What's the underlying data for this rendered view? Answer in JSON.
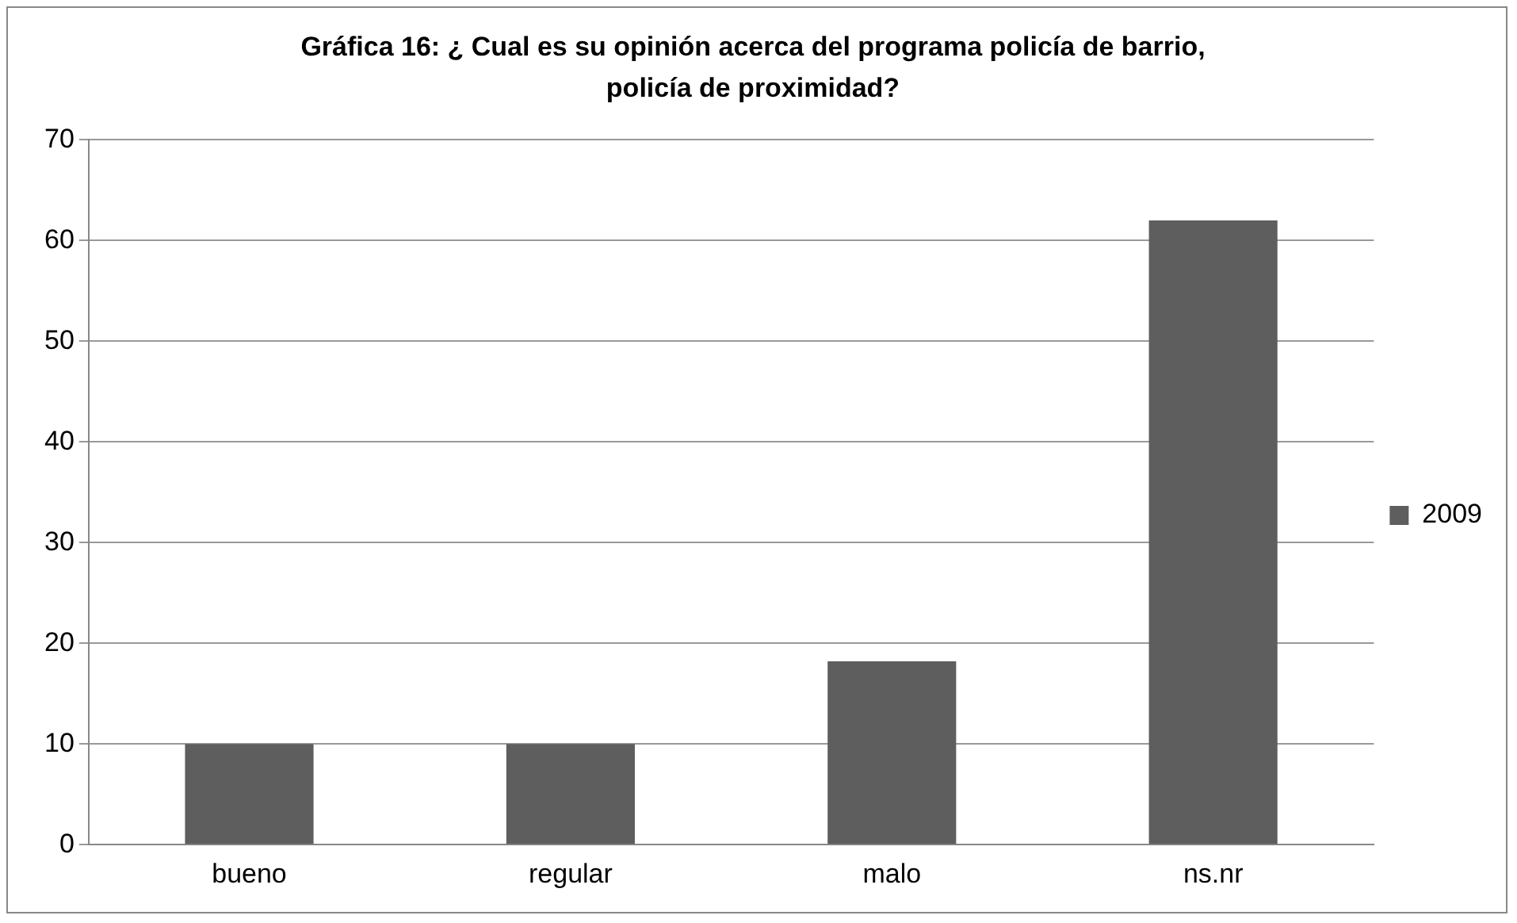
{
  "chart_data": {
    "type": "bar",
    "title": "Gráfica 16: ¿ Cual es su opinión acerca del programa policía de barrio, policía de proximidad?",
    "categories": [
      "bueno",
      "regular",
      "malo",
      "ns.nr"
    ],
    "series": [
      {
        "name": "2009",
        "color": "#5e5e5e",
        "values": [
          10,
          10,
          18.2,
          62
        ]
      }
    ],
    "ylim": [
      0,
      70
    ],
    "yticks": [
      0,
      10,
      20,
      30,
      40,
      50,
      60,
      70
    ],
    "grid": "y",
    "legend": "right"
  }
}
